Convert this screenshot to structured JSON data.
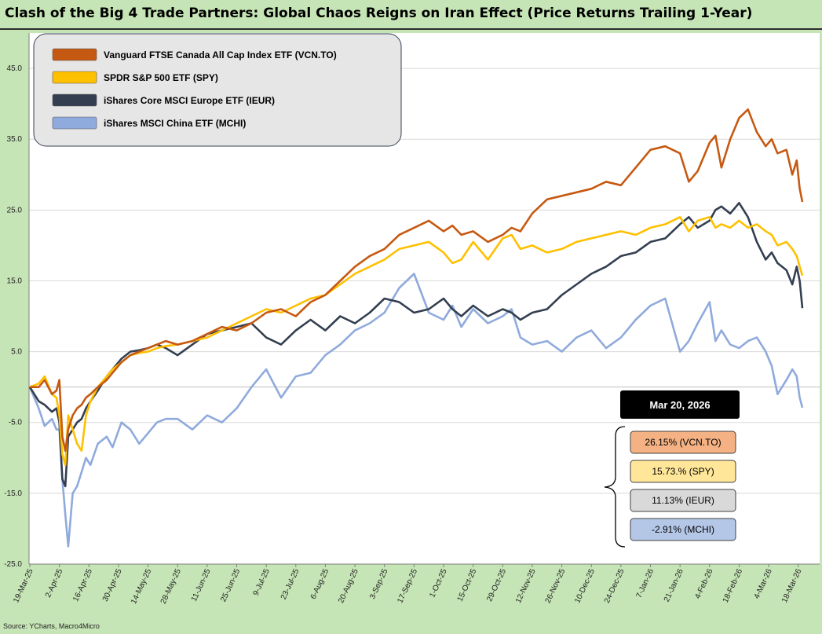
{
  "title": "Clash of the Big 4 Trade Partners: Global Chaos Reigns on Iran Effect (Price Returns Trailing 1-Year)",
  "source": "Source: YCharts, Macro4Micro",
  "callout": {
    "date": "Mar 20, 2026",
    "labels": [
      "26.15% (VCN.TO)",
      "15.73.% (SPY)",
      "11.13% (IEUR)",
      "-2.91% (MCHI)"
    ]
  },
  "chart_data": {
    "type": "line",
    "ylim": [
      -25,
      50
    ],
    "yticks": [
      -25,
      -15,
      -5,
      5,
      15,
      25,
      35,
      45
    ],
    "ytick_labels": [
      "-25.0",
      "-15.0",
      "-5.0",
      "5.0",
      "15.0",
      "25.0",
      "35.0",
      "45.0"
    ],
    "x_tick_labels": [
      "19-Mar-25",
      "2-Apr-25",
      "16-Apr-25",
      "30-Apr-25",
      "14-May-25",
      "28-May-25",
      "11-Jun-25",
      "25-Jun-25",
      "9-Jul-25",
      "23-Jul-25",
      "6-Aug-25",
      "20-Aug-25",
      "3-Sep-25",
      "17-Sep-25",
      "1-Oct-25",
      "15-Oct-25",
      "29-Oct-25",
      "12-Nov-25",
      "26-Nov-25",
      "10-Dec-25",
      "24-Dec-25",
      "7-Jan-26",
      "21-Jan-26",
      "4-Feb-26",
      "18-Feb-26",
      "4-Mar-26",
      "18-Mar-26"
    ],
    "x_index_range": [
      0,
      26.14
    ],
    "legend_position": "top-left",
    "grid": "horizontal",
    "series": [
      {
        "name": "Vanguard FTSE Canada All Cap Index ETF (VCN.TO)",
        "color": "#c65911",
        "x": [
          0,
          0.3,
          0.5,
          0.75,
          0.9,
          1.0,
          1.1,
          1.2,
          1.3,
          1.45,
          1.6,
          1.75,
          1.9,
          2.05,
          2.3,
          2.6,
          2.8,
          3.1,
          3.4,
          3.7,
          4.0,
          4.3,
          4.6,
          5.0,
          5.5,
          6.0,
          6.5,
          7.0,
          7.5,
          8.0,
          8.5,
          9.0,
          9.5,
          10.0,
          10.5,
          11.0,
          11.5,
          12.0,
          12.5,
          13.0,
          13.5,
          14.0,
          14.3,
          14.6,
          15.0,
          15.5,
          16.0,
          16.3,
          16.6,
          17.0,
          17.5,
          18.0,
          18.5,
          19.0,
          19.5,
          20.0,
          20.5,
          21.0,
          21.5,
          22.0,
          22.3,
          22.6,
          23.0,
          23.2,
          23.4,
          23.7,
          24.0,
          24.3,
          24.6,
          24.9,
          25.1,
          25.3,
          25.6,
          25.8,
          25.95,
          26.05,
          26.14
        ],
        "y": [
          0,
          0,
          1.0,
          -1.0,
          -0.5,
          1.0,
          -7.0,
          -9.0,
          -6.0,
          -4.0,
          -3.0,
          -2.5,
          -1.5,
          -1.0,
          0,
          1.0,
          2.0,
          3.5,
          4.5,
          5.0,
          5.5,
          6.0,
          6.5,
          6.0,
          6.5,
          7.5,
          8.5,
          8.0,
          9.0,
          10.5,
          11.0,
          10.0,
          12.0,
          13.0,
          15.0,
          17.0,
          18.5,
          19.5,
          21.5,
          22.5,
          23.5,
          22.0,
          22.8,
          21.5,
          22.0,
          20.5,
          21.5,
          22.5,
          22.0,
          24.5,
          26.5,
          27.0,
          27.5,
          28.0,
          29.0,
          28.5,
          31.0,
          33.5,
          34.0,
          33.0,
          29.0,
          30.5,
          34.5,
          35.5,
          31.0,
          35.0,
          38.0,
          39.2,
          36.0,
          34.0,
          35.0,
          33.0,
          33.5,
          30.0,
          32.0,
          28.0,
          26.15
        ]
      },
      {
        "name": "SPDR S&P 500 ETF (SPY)",
        "color": "#ffc000",
        "x": [
          0,
          0.3,
          0.5,
          0.75,
          0.9,
          1.0,
          1.1,
          1.2,
          1.3,
          1.45,
          1.6,
          1.75,
          1.9,
          2.05,
          2.3,
          2.6,
          2.8,
          3.1,
          3.4,
          3.7,
          4.0,
          4.3,
          4.6,
          5.0,
          5.5,
          6.0,
          6.5,
          7.0,
          7.5,
          8.0,
          8.5,
          9.0,
          9.5,
          10.0,
          10.5,
          11.0,
          11.5,
          12.0,
          12.5,
          13.0,
          13.5,
          14.0,
          14.3,
          14.6,
          15.0,
          15.5,
          16.0,
          16.3,
          16.6,
          17.0,
          17.5,
          18.0,
          18.5,
          19.0,
          19.5,
          20.0,
          20.5,
          21.0,
          21.5,
          22.0,
          22.3,
          22.6,
          23.0,
          23.2,
          23.4,
          23.7,
          24.0,
          24.3,
          24.6,
          24.9,
          25.1,
          25.3,
          25.6,
          25.8,
          25.95,
          26.05,
          26.14
        ],
        "y": [
          0,
          0.5,
          1.5,
          -1.0,
          -1.5,
          -4.0,
          -9.5,
          -11.0,
          -4.0,
          -6.0,
          -8.0,
          -9.0,
          -4.0,
          -2.0,
          0,
          1.5,
          2.5,
          3.5,
          4.5,
          4.8,
          5.0,
          5.5,
          5.8,
          6.0,
          6.5,
          7.0,
          8.0,
          9.0,
          10.0,
          11.0,
          10.5,
          11.5,
          12.5,
          13.0,
          14.5,
          16.0,
          17.0,
          18.0,
          19.5,
          20.0,
          20.5,
          19.0,
          17.5,
          18.0,
          20.5,
          18.0,
          21.0,
          21.5,
          19.5,
          20.0,
          19.0,
          19.5,
          20.5,
          21.0,
          21.5,
          22.0,
          21.5,
          22.5,
          23.0,
          24.0,
          22.0,
          23.5,
          24.0,
          22.5,
          23.0,
          22.5,
          23.5,
          22.5,
          23.0,
          22.0,
          21.5,
          20.0,
          20.5,
          19.5,
          18.5,
          17.0,
          15.73
        ]
      },
      {
        "name": "iShares Core MSCI Europe ETF (IEUR)",
        "color": "#333f50",
        "x": [
          0,
          0.3,
          0.5,
          0.75,
          0.9,
          1.0,
          1.1,
          1.2,
          1.3,
          1.45,
          1.6,
          1.75,
          1.9,
          2.05,
          2.3,
          2.6,
          2.8,
          3.1,
          3.4,
          3.7,
          4.0,
          4.3,
          4.6,
          5.0,
          5.5,
          6.0,
          6.5,
          7.0,
          7.5,
          8.0,
          8.5,
          9.0,
          9.5,
          10.0,
          10.5,
          11.0,
          11.5,
          12.0,
          12.5,
          13.0,
          13.5,
          14.0,
          14.3,
          14.6,
          15.0,
          15.5,
          16.0,
          16.3,
          16.6,
          17.0,
          17.5,
          18.0,
          18.5,
          19.0,
          19.5,
          20.0,
          20.5,
          21.0,
          21.5,
          22.0,
          22.3,
          22.6,
          23.0,
          23.2,
          23.4,
          23.7,
          24.0,
          24.3,
          24.6,
          24.9,
          25.1,
          25.3,
          25.6,
          25.8,
          25.95,
          26.05,
          26.14
        ],
        "y": [
          0,
          -2.0,
          -2.5,
          -3.5,
          -3.0,
          -5.0,
          -13.0,
          -14.0,
          -7.0,
          -6.0,
          -5.0,
          -4.5,
          -3.0,
          -2.0,
          -0.5,
          1.5,
          2.5,
          4.0,
          5.0,
          5.2,
          5.5,
          6.0,
          5.5,
          4.5,
          6.0,
          7.5,
          8.0,
          8.5,
          9.0,
          7.0,
          6.0,
          8.0,
          9.5,
          8.0,
          10.0,
          9.0,
          10.5,
          12.5,
          12.0,
          10.5,
          11.0,
          12.5,
          11.0,
          10.0,
          11.5,
          10.0,
          11.0,
          10.5,
          9.5,
          10.5,
          11.0,
          13.0,
          14.5,
          16.0,
          17.0,
          18.5,
          19.0,
          20.5,
          21.0,
          23.0,
          24.0,
          22.5,
          23.5,
          25.0,
          25.5,
          24.5,
          26.0,
          24.0,
          20.5,
          18.0,
          19.0,
          17.5,
          16.5,
          14.5,
          17.0,
          15.0,
          11.13
        ]
      },
      {
        "name": "iShares MSCI China ETF (MCHI)",
        "color": "#8faadc",
        "x": [
          0,
          0.3,
          0.5,
          0.75,
          0.9,
          1.0,
          1.1,
          1.2,
          1.3,
          1.45,
          1.6,
          1.75,
          1.9,
          2.05,
          2.3,
          2.6,
          2.8,
          3.1,
          3.4,
          3.7,
          4.0,
          4.3,
          4.6,
          5.0,
          5.5,
          6.0,
          6.5,
          7.0,
          7.5,
          8.0,
          8.5,
          9.0,
          9.5,
          10.0,
          10.5,
          11.0,
          11.5,
          12.0,
          12.5,
          13.0,
          13.5,
          14.0,
          14.3,
          14.6,
          15.0,
          15.5,
          16.0,
          16.3,
          16.6,
          17.0,
          17.5,
          18.0,
          18.5,
          19.0,
          19.5,
          20.0,
          20.5,
          21.0,
          21.5,
          22.0,
          22.3,
          22.6,
          23.0,
          23.2,
          23.4,
          23.7,
          24.0,
          24.3,
          24.6,
          24.9,
          25.1,
          25.3,
          25.6,
          25.8,
          25.95,
          26.05,
          26.14
        ],
        "y": [
          0,
          -3.0,
          -5.5,
          -4.5,
          -6.0,
          -6.0,
          -13.0,
          -18.0,
          -22.5,
          -15.0,
          -14.0,
          -12.0,
          -10.0,
          -11.0,
          -8.0,
          -7.0,
          -8.5,
          -5.0,
          -6.0,
          -8.0,
          -6.5,
          -5.0,
          -4.5,
          -4.5,
          -6.0,
          -4.0,
          -5.0,
          -3.0,
          0,
          2.5,
          -1.5,
          1.5,
          2.0,
          4.5,
          6.0,
          8.0,
          9.0,
          10.5,
          14.0,
          16.0,
          10.5,
          9.5,
          11.5,
          8.5,
          11.0,
          9.0,
          10.0,
          11.0,
          7.0,
          6.0,
          6.5,
          5.0,
          7.0,
          8.0,
          5.5,
          7.0,
          9.5,
          11.5,
          12.5,
          5.0,
          6.5,
          9.0,
          12.0,
          6.5,
          8.0,
          6.0,
          5.5,
          6.5,
          7.0,
          5.0,
          3.0,
          -1.0,
          1.0,
          2.5,
          1.5,
          -1.5,
          -2.91
        ]
      }
    ]
  }
}
